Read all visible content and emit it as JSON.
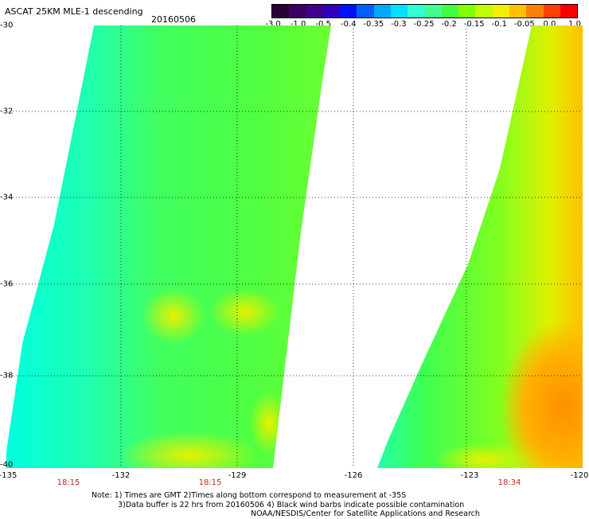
{
  "header": {
    "title": "ASCAT 25KM MLE-1 descending",
    "date": "20160506"
  },
  "colorbar": {
    "colors": [
      "#2a0033",
      "#3c0060",
      "#40008c",
      "#3000c0",
      "#0010ff",
      "#0060ff",
      "#00a8ff",
      "#00e0ff",
      "#30ffd0",
      "#40ff90",
      "#40ff40",
      "#80ff00",
      "#c0ff00",
      "#f0f000",
      "#ffc000",
      "#ff8000",
      "#ff4000",
      "#ff0000"
    ],
    "tick_labels": [
      "-3.0",
      "-1.0",
      "-0.5",
      "-0.4",
      "-0.35",
      "-0.3",
      "-0.25",
      "-0.2",
      "-0.15",
      "-0.1",
      "-0.05",
      "0.0",
      "1.0"
    ]
  },
  "axes": {
    "lat_labels": [
      "-30",
      "-32",
      "-34",
      "-36",
      "-38",
      "-40"
    ],
    "lon_labels": [
      "-135",
      "-132",
      "-129",
      "-126",
      "-123",
      "-120"
    ],
    "time_labels": [
      "18:15",
      "18:15",
      "18:34"
    ]
  },
  "notes": {
    "line1": "Note: 1) Times are GMT 2)Times along bottom correspond to measurement at -35S",
    "line2": "3)Data buffer is 22 hrs from 20160506 4) Black wind barbs indicate possible contamination",
    "line3": "NOAA/NESDIS/Center for Satellite Applications and Research"
  },
  "colors": {
    "time_label": "#c0281c",
    "cyan": "#00ffe0",
    "green": "#40ff40",
    "yellow": "#f0f000",
    "orange": "#ffa000"
  }
}
